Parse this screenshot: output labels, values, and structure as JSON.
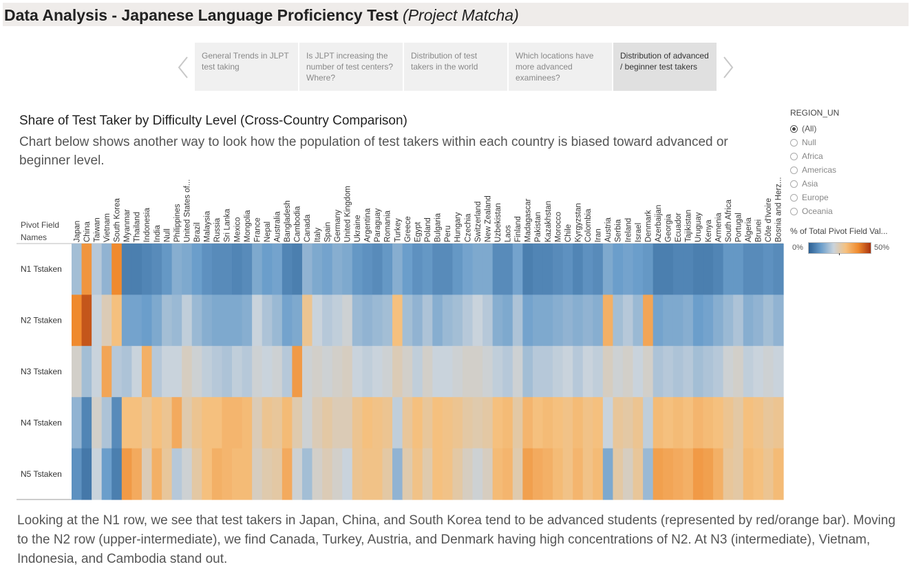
{
  "header": {
    "title": "Data Analysis - Japanese Language Proficiency Test",
    "subtitle": "(Project Matcha)"
  },
  "story_nav": {
    "tabs": [
      {
        "label": "General Trends in JLPT test taking",
        "active": false
      },
      {
        "label": "Is JLPT increasing the number of test centers? Where?",
        "active": false
      },
      {
        "label": "Distribution of test takers in the world",
        "active": false
      },
      {
        "label": "Which locations have more advanced examinees?",
        "active": false
      },
      {
        "label": "Distribution of advanced / beginner test takers",
        "active": true
      }
    ]
  },
  "chart_title": "Share of Test Taker by Difficulty Level (Cross-Country Comparison)",
  "chart_subtitle": "Chart below shows another way to look how the population of test takers within each country is biased toward advanced or beginner level.",
  "filter": {
    "title": "REGION_UN",
    "options": [
      "(All)",
      "Null",
      "Africa",
      "Americas",
      "Asia",
      "Europe",
      "Oceania"
    ],
    "selected": "(All)"
  },
  "legend": {
    "title": "% of Total Pivot Field Val...",
    "min_label": "0%",
    "max_label": "50%",
    "colors": [
      "#2b5f93",
      "#6b9ecb",
      "#c9d3dc",
      "#f5c07e",
      "#ef8a2e",
      "#a8330f"
    ]
  },
  "footer_text": "Looking at the N1 row, we see that test takers in Japan, China, and South Korea tend to be advanced students (represented by red/orange bar). Moving to the N2 row (upper-intermediate), we find Canada, Turkey, Austria, and Denmark having high concentrations of N2. At N3 (intermediate), Vietnam, Indonesia, and Cambodia stand out.",
  "chart_data": {
    "type": "heatmap",
    "title": "Share of Test Taker by Difficulty Level (Cross-Country Comparison)",
    "ylabel": "Pivot Field Names",
    "rows": [
      "N1 Tstaken",
      "N2 Tstaken",
      "N3 Tstaken",
      "N4 Tstaken",
      "N5 Tstaken"
    ],
    "columns": [
      "Japan",
      "China",
      "Taiwan",
      "Vietnam",
      "South Korea",
      "Myanmar",
      "Thailand",
      "Indonesia",
      "India",
      "Null",
      "Philippines",
      "United States of...",
      "Brazil",
      "Malaysia",
      "Russia",
      "Sri Lanka",
      "Mexico",
      "Mongolia",
      "France",
      "Nepal",
      "Australia",
      "Bangladesh",
      "Cambodia",
      "Canada",
      "Italy",
      "Spain",
      "Germany",
      "United Kingdom",
      "Ukraine",
      "Argentina",
      "Paraguay",
      "Romania",
      "Turkey",
      "Greece",
      "Egypt",
      "Poland",
      "Bulgaria",
      "Peru",
      "Hungary",
      "Czechia",
      "Switzerland",
      "New Zealand",
      "Uzbekistan",
      "Laos",
      "Finland",
      "Madagascar",
      "Pakistan",
      "Kazakhstan",
      "Morocco",
      "Chile",
      "Kyrgyzstan",
      "Colombia",
      "Iran",
      "Austria",
      "Serbia",
      "Ireland",
      "Israel",
      "Denmark",
      "Azerbaijan",
      "Georgia",
      "Ecuador",
      "Tajikistan",
      "Uruguay",
      "Kenya",
      "Armenia",
      "South Africa",
      "Portugal",
      "Algeria",
      "Brunei",
      "Côte d'Ivoire",
      "Bosnia and Herz..."
    ],
    "values": [
      [
        0.16,
        0.38,
        0.18,
        0.14,
        0.4,
        0.05,
        0.05,
        0.06,
        0.07,
        0.09,
        0.13,
        0.12,
        0.1,
        0.08,
        0.07,
        0.07,
        0.06,
        0.07,
        0.12,
        0.1,
        0.11,
        0.06,
        0.05,
        0.14,
        0.12,
        0.11,
        0.13,
        0.12,
        0.09,
        0.08,
        0.07,
        0.09,
        0.13,
        0.1,
        0.08,
        0.09,
        0.07,
        0.07,
        0.09,
        0.11,
        0.12,
        0.12,
        0.07,
        0.07,
        0.11,
        0.05,
        0.06,
        0.06,
        0.07,
        0.08,
        0.06,
        0.08,
        0.07,
        0.12,
        0.1,
        0.11,
        0.1,
        0.09,
        0.05,
        0.05,
        0.06,
        0.06,
        0.05,
        0.05,
        0.06,
        0.09,
        0.09,
        0.07,
        0.07,
        0.08,
        0.07
      ],
      [
        0.4,
        0.46,
        0.2,
        0.24,
        0.3,
        0.11,
        0.11,
        0.1,
        0.12,
        0.16,
        0.15,
        0.19,
        0.15,
        0.13,
        0.12,
        0.12,
        0.12,
        0.13,
        0.2,
        0.17,
        0.15,
        0.11,
        0.12,
        0.28,
        0.2,
        0.18,
        0.19,
        0.21,
        0.15,
        0.14,
        0.15,
        0.16,
        0.3,
        0.16,
        0.14,
        0.17,
        0.13,
        0.15,
        0.16,
        0.18,
        0.2,
        0.18,
        0.13,
        0.12,
        0.17,
        0.11,
        0.12,
        0.12,
        0.13,
        0.14,
        0.13,
        0.14,
        0.13,
        0.33,
        0.16,
        0.18,
        0.15,
        0.35,
        0.11,
        0.12,
        0.12,
        0.13,
        0.1,
        0.11,
        0.13,
        0.15,
        0.17,
        0.13,
        0.14,
        0.16,
        0.14
      ],
      [
        0.22,
        0.16,
        0.2,
        0.35,
        0.18,
        0.17,
        0.2,
        0.33,
        0.18,
        0.2,
        0.2,
        0.23,
        0.21,
        0.19,
        0.18,
        0.17,
        0.19,
        0.18,
        0.21,
        0.2,
        0.21,
        0.18,
        0.37,
        0.21,
        0.22,
        0.21,
        0.22,
        0.23,
        0.2,
        0.19,
        0.2,
        0.21,
        0.24,
        0.22,
        0.19,
        0.22,
        0.2,
        0.2,
        0.21,
        0.22,
        0.22,
        0.21,
        0.19,
        0.18,
        0.21,
        0.16,
        0.18,
        0.18,
        0.19,
        0.2,
        0.18,
        0.2,
        0.19,
        0.23,
        0.21,
        0.22,
        0.2,
        0.22,
        0.17,
        0.18,
        0.17,
        0.18,
        0.16,
        0.17,
        0.18,
        0.21,
        0.22,
        0.19,
        0.2,
        0.21,
        0.2
      ],
      [
        0.14,
        0.06,
        0.22,
        0.17,
        0.07,
        0.3,
        0.3,
        0.27,
        0.3,
        0.28,
        0.34,
        0.25,
        0.28,
        0.3,
        0.3,
        0.32,
        0.32,
        0.31,
        0.24,
        0.28,
        0.27,
        0.31,
        0.25,
        0.21,
        0.24,
        0.26,
        0.24,
        0.24,
        0.28,
        0.3,
        0.29,
        0.28,
        0.19,
        0.27,
        0.3,
        0.27,
        0.3,
        0.29,
        0.28,
        0.26,
        0.25,
        0.26,
        0.3,
        0.31,
        0.26,
        0.32,
        0.3,
        0.31,
        0.3,
        0.29,
        0.31,
        0.29,
        0.3,
        0.2,
        0.27,
        0.26,
        0.28,
        0.19,
        0.31,
        0.3,
        0.31,
        0.3,
        0.32,
        0.31,
        0.3,
        0.28,
        0.26,
        0.3,
        0.29,
        0.27,
        0.28
      ],
      [
        0.08,
        0.04,
        0.2,
        0.1,
        0.05,
        0.37,
        0.34,
        0.24,
        0.33,
        0.27,
        0.18,
        0.21,
        0.26,
        0.3,
        0.33,
        0.32,
        0.31,
        0.31,
        0.23,
        0.25,
        0.26,
        0.34,
        0.21,
        0.16,
        0.22,
        0.24,
        0.22,
        0.2,
        0.28,
        0.29,
        0.29,
        0.26,
        0.14,
        0.25,
        0.29,
        0.25,
        0.3,
        0.29,
        0.26,
        0.23,
        0.21,
        0.23,
        0.31,
        0.32,
        0.25,
        0.36,
        0.34,
        0.33,
        0.31,
        0.29,
        0.32,
        0.29,
        0.31,
        0.12,
        0.26,
        0.23,
        0.27,
        0.15,
        0.36,
        0.35,
        0.34,
        0.33,
        0.37,
        0.36,
        0.33,
        0.27,
        0.26,
        0.31,
        0.3,
        0.28,
        0.31
      ]
    ],
    "color_range": [
      0,
      0.5
    ]
  }
}
